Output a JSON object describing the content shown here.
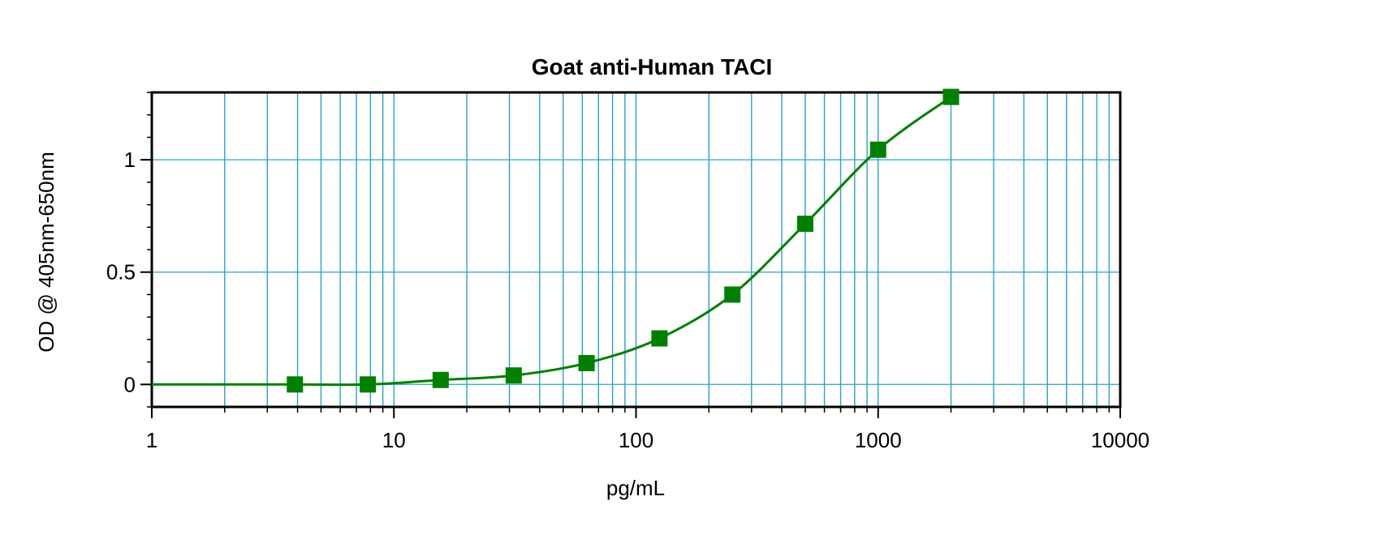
{
  "chart_data": {
    "type": "scatter",
    "title": "Goat anti-Human TACI",
    "xlabel": "pg/mL",
    "ylabel": "OD @ 405nm-650nm",
    "xscale": "log",
    "xlim": [
      1,
      10000
    ],
    "ylim": [
      -0.1,
      1.3
    ],
    "grid": true,
    "legend": "none",
    "x_ticks": [
      {
        "value": 1,
        "label": "1"
      },
      {
        "value": 10,
        "label": "10"
      },
      {
        "value": 100,
        "label": "100"
      },
      {
        "value": 1000,
        "label": "1000"
      },
      {
        "value": 10000,
        "label": "10000"
      }
    ],
    "y_ticks": [
      {
        "value": 0,
        "label": "0"
      },
      {
        "value": 0.5,
        "label": "0.5"
      },
      {
        "value": 1,
        "label": "1"
      }
    ],
    "series": [
      {
        "color": "#008000",
        "marker": "square",
        "x": [
          3.9,
          7.8,
          15.6,
          31.25,
          62.5,
          125,
          250,
          500,
          1000,
          2000
        ],
        "y": [
          0.0,
          0.0,
          0.02,
          0.04,
          0.095,
          0.205,
          0.4,
          0.715,
          1.045,
          1.28
        ]
      }
    ],
    "colors": {
      "grid": "#29a3c9",
      "frame": "#000000",
      "series": "#008000"
    }
  }
}
